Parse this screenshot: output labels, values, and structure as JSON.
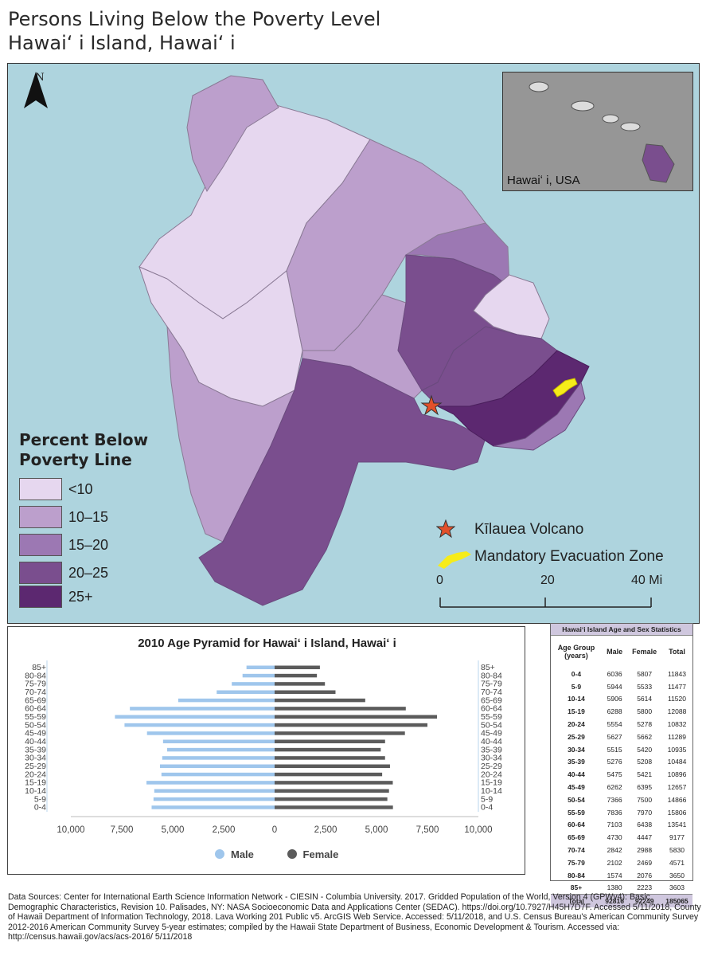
{
  "title": {
    "line1": "Persons Living Below the Poverty Level",
    "line2": "Hawaiʻ i Island, Hawaiʻ i"
  },
  "north_arrow": {
    "letter": "N"
  },
  "inset": {
    "label": "Hawaiʻ i, USA"
  },
  "poverty_legend": {
    "title_line1": "Percent Below",
    "title_line2": "Poverty Line",
    "classes": [
      {
        "label": "<10",
        "color": "#e6d7ef"
      },
      {
        "label": "10–15",
        "color": "#bc9fcc"
      },
      {
        "label": "15–20",
        "color": "#9c78b3"
      },
      {
        "label": "20–25",
        "color": "#7a4e8e"
      },
      {
        "label": "25+",
        "color": "#5c2870"
      }
    ]
  },
  "symbols": [
    {
      "label": "Kīlauea Volcano",
      "icon": "star-icon",
      "color": "#e2502a"
    },
    {
      "label": "Mandatory Evacuation Zone",
      "icon": "evacuation-zone-icon",
      "color": "#f6ec19"
    }
  ],
  "scale_bar": {
    "labels": [
      "0",
      "20",
      "40 Mi"
    ]
  },
  "colors": {
    "water": "#aed4de",
    "male": "#9fc6ec",
    "female": "#5b5b5b",
    "table_header": "#cfc7de"
  },
  "pyramid": {
    "title": "2010 Age Pyramid for Hawaiʻ i Island, Hawaiʻ i",
    "x_ticks": [
      "10,000",
      "7,500",
      "5,000",
      "2,500",
      "0",
      "2,500",
      "5,000",
      "7,500",
      "10,000"
    ],
    "legend_male": "Male",
    "legend_female": "Female"
  },
  "chart_data": {
    "type": "bar",
    "title": "2010 Age Pyramid for Hawaiʻ i Island, Hawaiʻ i",
    "orientation": "horizontal-pyramid",
    "categories": [
      "0–4",
      "5–9",
      "10–14",
      "15–19",
      "20–24",
      "25–29",
      "30–34",
      "35–39",
      "40–44",
      "45–49",
      "50–54",
      "55–59",
      "60–64",
      "65–69",
      "70–74",
      "75–79",
      "80–84",
      "85+"
    ],
    "series": [
      {
        "name": "Male",
        "values": [
          6036,
          5944,
          5906,
          6288,
          5554,
          5627,
          5515,
          5276,
          5475,
          6262,
          7366,
          7836,
          7103,
          4730,
          2842,
          2102,
          1574,
          1380
        ]
      },
      {
        "name": "Female",
        "values": [
          5807,
          5533,
          5614,
          5800,
          5278,
          5662,
          5420,
          5208,
          5421,
          6395,
          7500,
          7970,
          6438,
          4447,
          2988,
          2469,
          2076,
          2223
        ]
      }
    ],
    "xlim": [
      -10000,
      10000
    ]
  },
  "stats": {
    "title": "Hawaiʻi Island Age and Sex Statistics",
    "headers": {
      "age_line1": "Age Group",
      "age_line2": "(years)",
      "male": "Male",
      "female": "Female",
      "total": "Total"
    },
    "rows": [
      [
        "0-4",
        "6036",
        "5807",
        "11843"
      ],
      [
        "5-9",
        "5944",
        "5533",
        "11477"
      ],
      [
        "10-14",
        "5906",
        "5614",
        "11520"
      ],
      [
        "15-19",
        "6288",
        "5800",
        "12088"
      ],
      [
        "20-24",
        "5554",
        "5278",
        "10832"
      ],
      [
        "25-29",
        "5627",
        "5662",
        "11289"
      ],
      [
        "30-34",
        "5515",
        "5420",
        "10935"
      ],
      [
        "35-39",
        "5276",
        "5208",
        "10484"
      ],
      [
        "40-44",
        "5475",
        "5421",
        "10896"
      ],
      [
        "45-49",
        "6262",
        "6395",
        "12657"
      ],
      [
        "50-54",
        "7366",
        "7500",
        "14866"
      ],
      [
        "55-59",
        "7836",
        "7970",
        "15806"
      ],
      [
        "60-64",
        "7103",
        "6438",
        "13541"
      ],
      [
        "65-69",
        "4730",
        "4447",
        "9177"
      ],
      [
        "70-74",
        "2842",
        "2988",
        "5830"
      ],
      [
        "75-79",
        "2102",
        "2469",
        "4571"
      ],
      [
        "80-84",
        "1574",
        "2076",
        "3650"
      ],
      [
        "85+",
        "1380",
        "2223",
        "3603"
      ]
    ],
    "total": [
      "Total",
      "92816",
      "92249",
      "185065"
    ]
  },
  "sources": "Data Sources: Center for International Earth Science Information Network - CIESIN - Columbia University. 2017. Gridded Population of the World, Version 4 (GPWv4): Basic Demographic Characteristics, Revision 10. Palisades, NY: NASA Socioeconomic Data and Applications Center (SEDAC). https://doi.org/10.7927/H45H7D7F. Accessed 5/11/2018, County of Hawaii Department of Information Technology, 2018. Lava Working 201 Public v5. ArcGIS Web Service. Accessed: 5/11/2018, and U.S. Census Bureau's American Community Survey 2012-2016 American Community Survey 5-year estimates; compiled by the Hawaii State Department of Business, Economic Development & Tourism. Accessed via: http://census.hawaii.gov/acs/acs-2016/ 5/11/2018"
}
